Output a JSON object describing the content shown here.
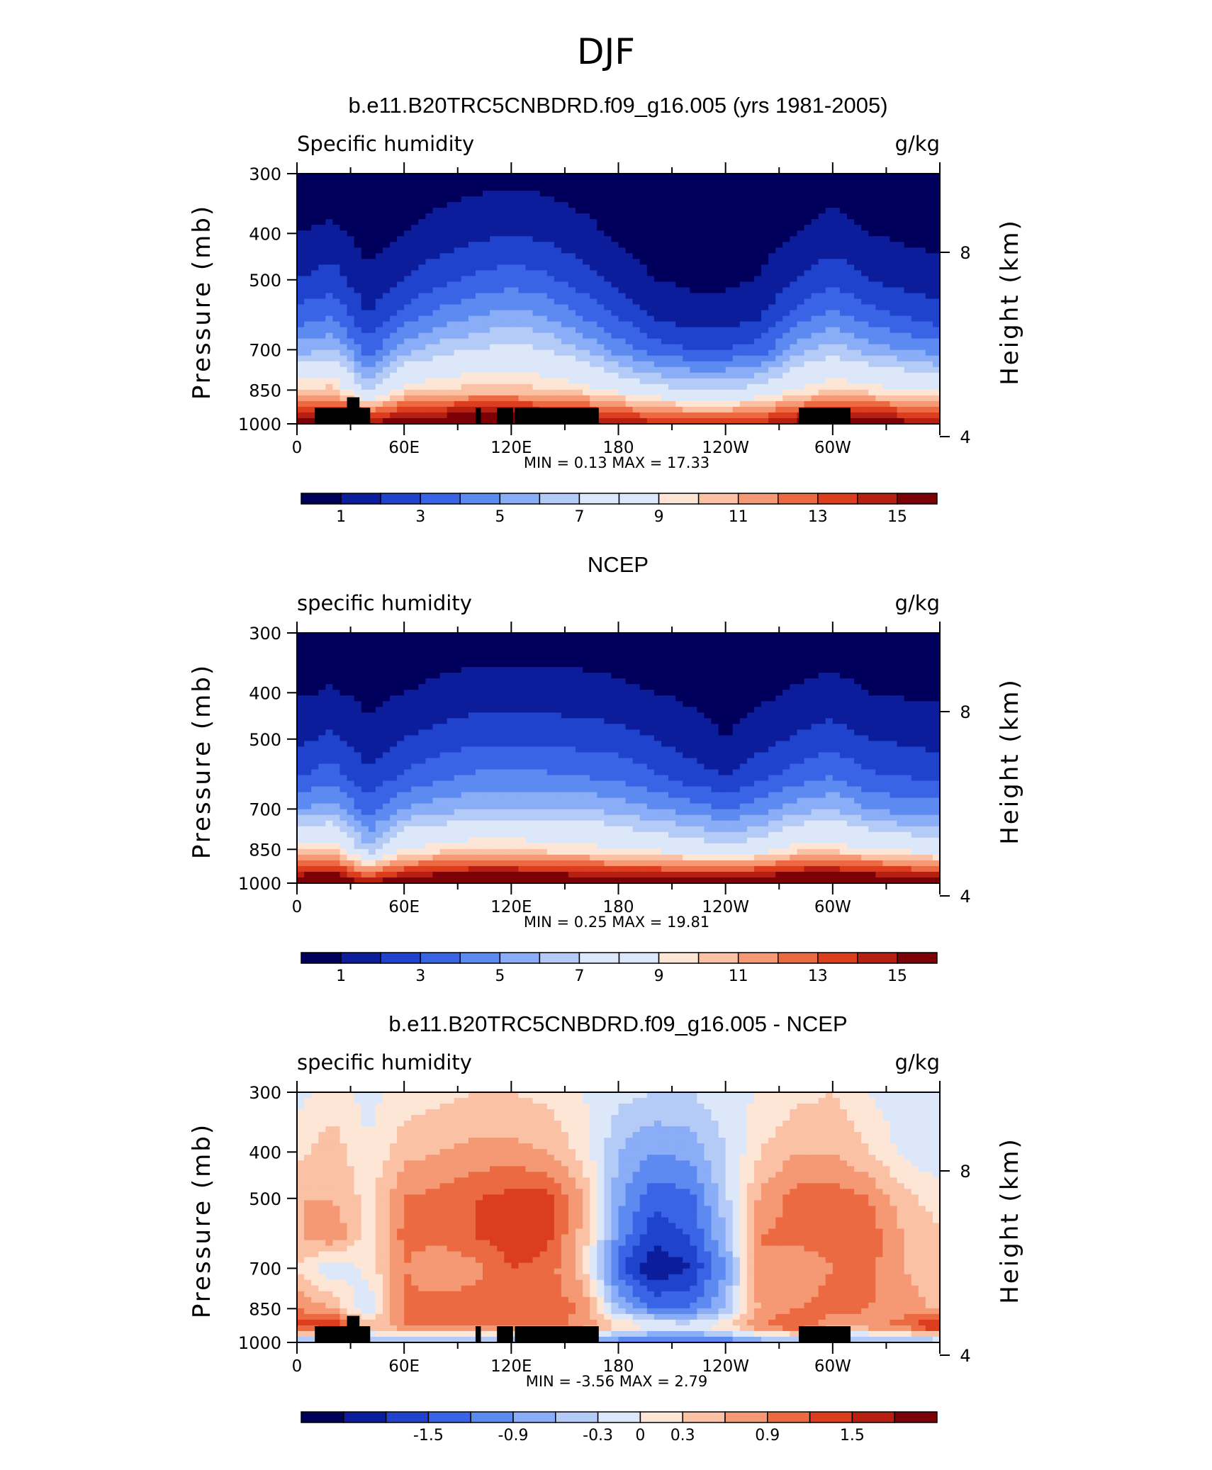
{
  "page_title": "DJF",
  "colorbar_palette": [
    "#00005c",
    "#0c1d9c",
    "#1f43cc",
    "#3a64e6",
    "#5c8af0",
    "#89adf6",
    "#b4cbf8",
    "#dce8fa",
    "#fde6d6",
    "#fbc1a4",
    "#f59874",
    "#ec6a42",
    "#dc3d1c",
    "#b71f10",
    "#7d0007"
  ],
  "chart_data": [
    {
      "type": "heatmap",
      "heading": "b.e11.B20TRC5CNBDRD.f09_g16.005 (yrs 1981-2005)",
      "left_label": "Specific humidity",
      "right_label": "g/kg",
      "ylabel": "Pressure (mb)",
      "y2label": "Height (km)",
      "x_ticks": [
        "0",
        "60E",
        "120E",
        "180",
        "120W",
        "60W"
      ],
      "y_ticks": [
        "300",
        "400",
        "500",
        "700",
        "850",
        "1000"
      ],
      "y2_ticks": [
        "8",
        "4"
      ],
      "minmax_text": "MIN =    0.13   MAX =    17.33",
      "min": 0.13,
      "max": 17.33,
      "levels": [
        1,
        2,
        3,
        4,
        5,
        6,
        7,
        8,
        9,
        10,
        11,
        12,
        13,
        14,
        15
      ],
      "colorbar_labels": [
        "1",
        "3",
        "5",
        "7",
        "9",
        "11",
        "13",
        "15"
      ],
      "x_lon": [
        0,
        20,
        40,
        60,
        80,
        100,
        120,
        140,
        160,
        180,
        200,
        220,
        240,
        260,
        280,
        300,
        320,
        340,
        360
      ],
      "p_levels": [
        1000,
        925,
        850,
        700,
        600,
        500,
        400,
        300
      ],
      "z": [
        [
          16.0,
          16.5,
          15.5,
          16.0,
          16.5,
          17.0,
          17.0,
          16.5,
          16.0,
          15.0,
          14.5,
          14.0,
          14.0,
          14.5,
          15.5,
          16.5,
          16.0,
          15.5,
          15.0
        ],
        [
          13.0,
          13.5,
          11.0,
          13.0,
          13.5,
          14.0,
          14.0,
          13.5,
          13.0,
          12.0,
          11.0,
          10.5,
          10.5,
          11.0,
          12.5,
          13.5,
          13.0,
          12.5,
          12.0
        ],
        [
          10.0,
          10.5,
          6.5,
          9.5,
          10.0,
          10.5,
          10.5,
          10.0,
          9.5,
          8.5,
          7.5,
          7.0,
          7.0,
          7.5,
          9.0,
          10.0,
          9.5,
          9.0,
          8.5
        ],
        [
          5.5,
          6.0,
          3.5,
          5.5,
          6.5,
          7.0,
          7.5,
          7.0,
          6.0,
          4.5,
          3.5,
          3.0,
          3.0,
          3.5,
          5.5,
          6.5,
          5.5,
          5.0,
          4.5
        ],
        [
          3.5,
          4.0,
          2.0,
          3.5,
          4.5,
          5.0,
          5.5,
          5.0,
          4.0,
          3.0,
          2.0,
          1.5,
          1.5,
          2.0,
          3.5,
          4.5,
          3.5,
          3.0,
          2.5
        ],
        [
          2.0,
          2.5,
          1.2,
          2.0,
          2.7,
          3.2,
          3.6,
          3.2,
          2.5,
          1.6,
          1.0,
          0.8,
          0.8,
          1.1,
          2.0,
          2.7,
          2.0,
          1.6,
          1.4
        ],
        [
          1.0,
          1.2,
          0.6,
          1.0,
          1.4,
          1.7,
          2.0,
          1.7,
          1.3,
          0.8,
          0.5,
          0.4,
          0.4,
          0.5,
          1.0,
          1.4,
          1.0,
          0.8,
          0.7
        ],
        [
          0.3,
          0.4,
          0.2,
          0.3,
          0.5,
          0.6,
          0.7,
          0.6,
          0.4,
          0.3,
          0.2,
          0.15,
          0.15,
          0.2,
          0.3,
          0.5,
          0.3,
          0.3,
          0.2
        ]
      ]
    },
    {
      "type": "heatmap",
      "heading": "NCEP",
      "left_label": "specific humidity",
      "right_label": "g/kg",
      "ylabel": "Pressure (mb)",
      "y2label": "Height (km)",
      "x_ticks": [
        "0",
        "60E",
        "120E",
        "180",
        "120W",
        "60W"
      ],
      "y_ticks": [
        "300",
        "400",
        "500",
        "700",
        "850",
        "1000"
      ],
      "y2_ticks": [
        "8",
        "4"
      ],
      "minmax_text": "MIN =    0.25   MAX =    19.81",
      "min": 0.25,
      "max": 19.81,
      "levels": [
        1,
        2,
        3,
        4,
        5,
        6,
        7,
        8,
        9,
        10,
        11,
        12,
        13,
        14,
        15
      ],
      "colorbar_labels": [
        "1",
        "3",
        "5",
        "7",
        "9",
        "11",
        "13",
        "15"
      ],
      "x_lon": [
        0,
        20,
        40,
        60,
        80,
        100,
        120,
        140,
        160,
        180,
        200,
        220,
        240,
        260,
        280,
        300,
        320,
        340,
        360
      ],
      "p_levels": [
        1000,
        925,
        850,
        700,
        600,
        500,
        400,
        300
      ],
      "z": [
        [
          17.0,
          17.5,
          14.5,
          17.0,
          17.5,
          18.0,
          18.0,
          17.5,
          17.0,
          17.0,
          17.0,
          17.0,
          17.0,
          17.0,
          17.5,
          18.0,
          17.5,
          17.0,
          16.5
        ],
        [
          13.0,
          13.5,
          10.5,
          12.5,
          13.0,
          13.5,
          13.5,
          13.0,
          13.0,
          12.5,
          12.5,
          12.0,
          12.0,
          12.5,
          13.5,
          13.5,
          13.0,
          12.5,
          12.0
        ],
        [
          9.5,
          10.0,
          6.0,
          9.0,
          9.5,
          10.0,
          10.0,
          9.5,
          9.5,
          9.0,
          8.5,
          8.0,
          7.5,
          8.0,
          9.5,
          9.5,
          9.0,
          8.5,
          8.0
        ],
        [
          5.0,
          5.5,
          3.5,
          5.0,
          5.5,
          6.0,
          6.0,
          6.0,
          6.0,
          5.5,
          5.0,
          4.5,
          4.0,
          4.5,
          5.5,
          6.0,
          5.0,
          4.5,
          4.5
        ],
        [
          3.0,
          3.5,
          2.2,
          3.2,
          3.8,
          4.2,
          4.2,
          4.2,
          4.0,
          3.8,
          3.2,
          2.5,
          2.0,
          2.8,
          3.5,
          4.0,
          3.2,
          3.0,
          2.8
        ],
        [
          1.8,
          2.2,
          1.3,
          2.0,
          2.4,
          2.7,
          2.7,
          2.7,
          2.6,
          2.4,
          2.0,
          1.5,
          1.0,
          1.6,
          2.2,
          2.5,
          2.0,
          1.8,
          1.6
        ],
        [
          0.9,
          1.1,
          0.7,
          1.0,
          1.2,
          1.4,
          1.4,
          1.4,
          1.3,
          1.2,
          1.0,
          0.8,
          0.5,
          0.8,
          1.1,
          1.3,
          1.0,
          0.9,
          0.8
        ],
        [
          0.3,
          0.4,
          0.3,
          0.4,
          0.5,
          0.5,
          0.5,
          0.5,
          0.5,
          0.4,
          0.4,
          0.3,
          0.25,
          0.3,
          0.4,
          0.5,
          0.4,
          0.3,
          0.3
        ]
      ]
    },
    {
      "type": "heatmap",
      "heading": "b.e11.B20TRC5CNBDRD.f09_g16.005 - NCEP",
      "left_label": "specific humidity",
      "right_label": "g/kg",
      "ylabel": "Pressure (mb)",
      "y2label": "Height (km)",
      "x_ticks": [
        "0",
        "60E",
        "120E",
        "180",
        "120W",
        "60W"
      ],
      "y_ticks": [
        "300",
        "400",
        "500",
        "700",
        "850",
        "1000"
      ],
      "y2_ticks": [
        "8",
        "4"
      ],
      "minmax_text": "MIN =   -3.56   MAX =     2.79",
      "min": -3.56,
      "max": 2.79,
      "levels": [
        -2.1,
        -1.8,
        -1.5,
        -1.2,
        -0.9,
        -0.6,
        -0.3,
        0,
        0.3,
        0.6,
        0.9,
        1.2,
        1.5,
        1.8
      ],
      "colorbar_labels": [
        "-1.5",
        "-0.9",
        "-0.3",
        "0",
        "0.3",
        "0.9",
        "1.5"
      ],
      "x_lon": [
        0,
        20,
        40,
        60,
        80,
        100,
        120,
        140,
        160,
        180,
        200,
        220,
        240,
        260,
        280,
        300,
        320,
        340,
        360
      ],
      "p_levels": [
        1000,
        925,
        850,
        700,
        600,
        500,
        400,
        300
      ],
      "z": [
        [
          -0.8,
          -0.8,
          -0.5,
          -0.6,
          -0.7,
          -0.8,
          -0.9,
          -0.9,
          -0.9,
          -1.2,
          -1.4,
          -1.4,
          -1.2,
          -0.9,
          -0.7,
          -0.8,
          -0.9,
          -0.7,
          -0.7
        ],
        [
          1.3,
          1.6,
          0.4,
          0.9,
          1.1,
          1.1,
          1.1,
          1.0,
          0.8,
          0.4,
          0.0,
          -0.1,
          0.3,
          0.9,
          1.3,
          0.7,
          0.8,
          1.0,
          1.7
        ],
        [
          0.9,
          0.6,
          -0.3,
          1.0,
          1.1,
          1.1,
          1.0,
          1.0,
          0.9,
          -0.6,
          -1.2,
          -1.2,
          -0.6,
          0.7,
          0.9,
          1.0,
          0.9,
          0.8,
          0.5
        ],
        [
          0.3,
          -0.3,
          0.1,
          0.9,
          0.6,
          0.8,
          1.2,
          1.1,
          0.4,
          -1.4,
          -2.1,
          -1.8,
          -0.9,
          0.9,
          0.7,
          0.9,
          1.0,
          0.6,
          0.3
        ],
        [
          0.5,
          0.9,
          0.1,
          1.0,
          1.0,
          1.2,
          1.4,
          1.3,
          0.5,
          -1.0,
          -1.7,
          -1.5,
          -0.6,
          0.9,
          1.0,
          1.0,
          1.1,
          0.6,
          0.4
        ],
        [
          0.6,
          0.6,
          0.2,
          0.9,
          1.0,
          1.2,
          1.3,
          1.3,
          0.6,
          -0.8,
          -1.4,
          -1.3,
          -0.4,
          0.7,
          1.0,
          1.1,
          0.9,
          0.4,
          0.1
        ],
        [
          0.2,
          0.5,
          0.0,
          0.5,
          0.6,
          0.7,
          0.7,
          0.6,
          0.2,
          -0.6,
          -0.9,
          -0.8,
          -0.3,
          0.3,
          0.6,
          0.6,
          0.3,
          -0.1,
          -0.2
        ],
        [
          -0.1,
          0.1,
          -0.1,
          0.1,
          0.2,
          0.3,
          0.3,
          0.2,
          0.0,
          -0.2,
          -0.3,
          -0.3,
          -0.1,
          0.0,
          0.2,
          0.3,
          0.0,
          -0.2,
          -0.1
        ]
      ]
    }
  ],
  "topography": [
    {
      "x0": 10,
      "x1": 33,
      "p": 925
    },
    {
      "x0": 28,
      "x1": 35,
      "p": 880
    },
    {
      "x0": 33,
      "x1": 41,
      "p": 925
    },
    {
      "x0": 100,
      "x1": 103,
      "p": 925
    },
    {
      "x0": 112,
      "x1": 121,
      "p": 925
    },
    {
      "x0": 122,
      "x1": 169,
      "p": 925
    },
    {
      "x0": 281,
      "x1": 310,
      "p": 925
    }
  ]
}
